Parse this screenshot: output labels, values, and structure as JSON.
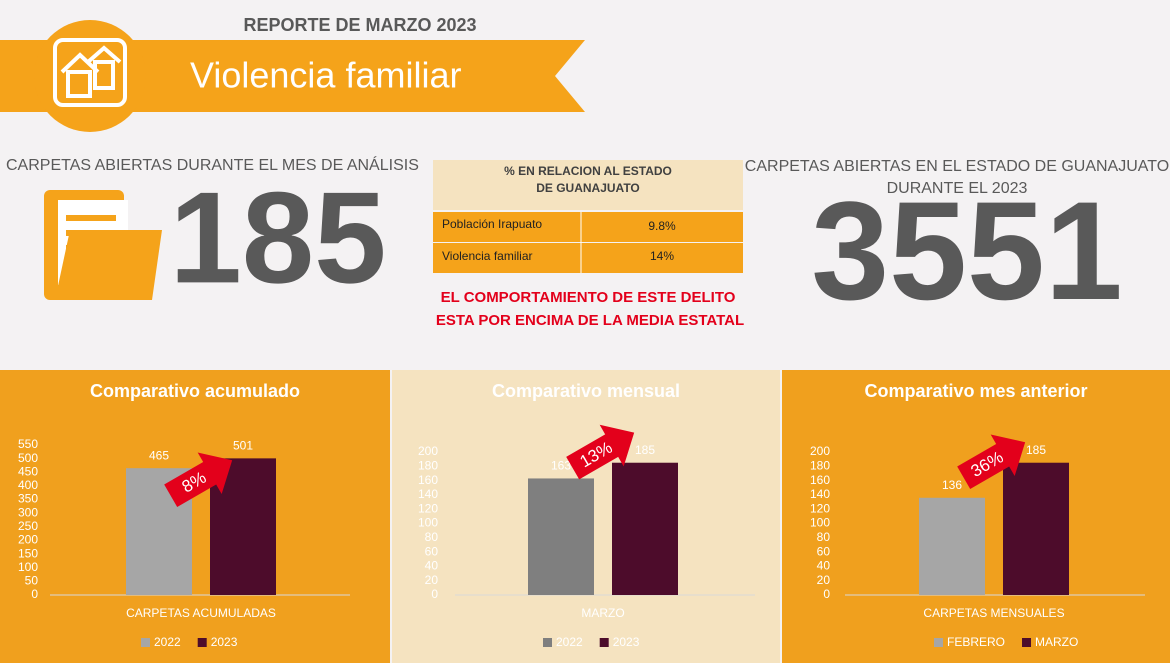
{
  "header": {
    "report": "REPORTE DE  MARZO 2023",
    "title": "Violencia familiar"
  },
  "left_stat": {
    "label": "CARPETAS ABIERTAS DURANTE EL MES DE ANÁLISIS",
    "value": "185"
  },
  "right_stat": {
    "label_lines": [
      "CARPETAS ABIERTAS EN EL ESTADO DE GUANAJUATO",
      "DURANTE EL 2023"
    ],
    "value": "3551"
  },
  "table": {
    "header_lines": [
      "% EN RELACION AL ESTADO",
      "DE GUANAJUATO"
    ],
    "rows": [
      [
        "Población Irapuato",
        "9.8%"
      ],
      [
        "Violencia familiar",
        "14%"
      ]
    ]
  },
  "note": [
    "EL COMPORTAMIENTO DE ESTE DELITO",
    "ESTA POR ENCIMA DE LA MEDIA ESTATAL"
  ],
  "chart_data": [
    {
      "type": "bar",
      "title": "Comparativo acumulado",
      "categories": [
        "CARPETAS ACUMULADAS"
      ],
      "series": [
        {
          "name": "2022",
          "color": "#a6a6a6",
          "values": [
            465
          ]
        },
        {
          "name": "2023",
          "color": "#4d0c2b",
          "values": [
            501
          ]
        }
      ],
      "ylim": [
        0,
        550
      ],
      "yticks": [
        0,
        50,
        100,
        150,
        200,
        250,
        300,
        350,
        400,
        450,
        500,
        550
      ],
      "annotation": "8%"
    },
    {
      "type": "bar",
      "title": "Comparativo mensual",
      "categories": [
        "MARZO"
      ],
      "series": [
        {
          "name": "2022",
          "color": "#7f7f7f",
          "values": [
            163
          ]
        },
        {
          "name": "2023",
          "color": "#4d0c2b",
          "values": [
            185
          ]
        }
      ],
      "ylim": [
        0,
        200
      ],
      "yticks": [
        0,
        20,
        40,
        60,
        80,
        100,
        120,
        140,
        160,
        180,
        200
      ],
      "annotation": "13%"
    },
    {
      "type": "bar",
      "title": "Comparativo mes anterior",
      "categories": [
        "CARPETAS MENSUALES"
      ],
      "series": [
        {
          "name": "FEBRERO",
          "color": "#a6a6a6",
          "values": [
            136
          ]
        },
        {
          "name": "MARZO",
          "color": "#4d0c2b",
          "values": [
            185
          ]
        }
      ],
      "ylim": [
        0,
        200
      ],
      "yticks": [
        0,
        20,
        40,
        60,
        80,
        100,
        120,
        140,
        160,
        180,
        200
      ],
      "annotation": "36%"
    }
  ]
}
